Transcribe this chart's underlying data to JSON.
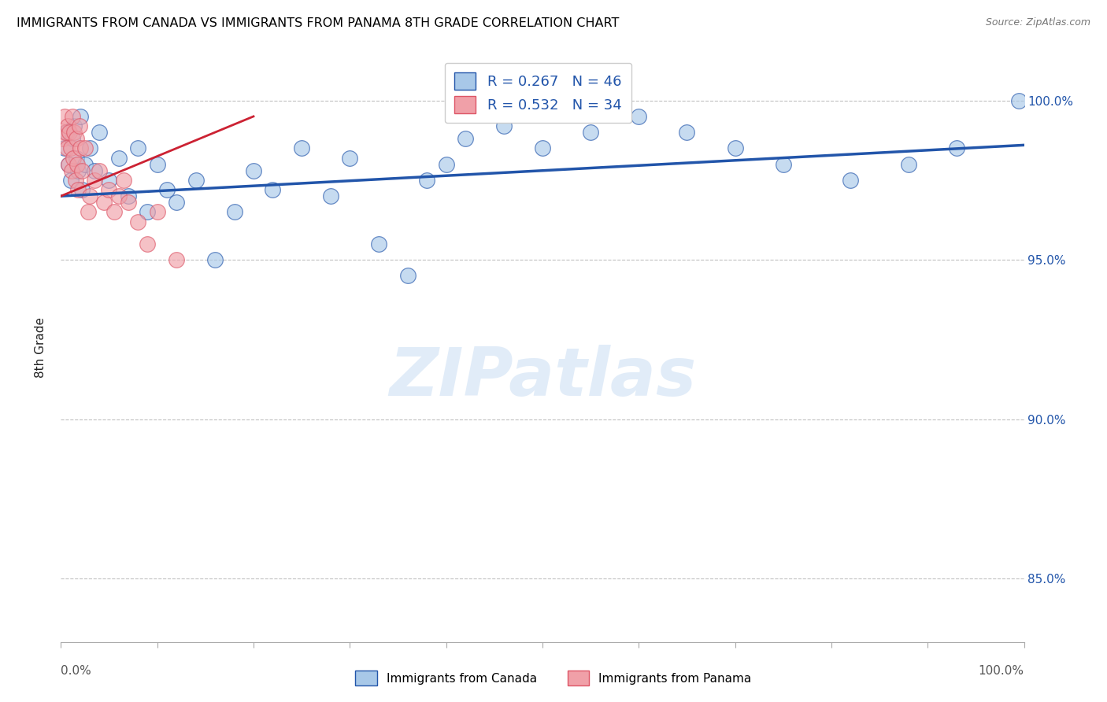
{
  "title": "IMMIGRANTS FROM CANADA VS IMMIGRANTS FROM PANAMA 8TH GRADE CORRELATION CHART",
  "source": "Source: ZipAtlas.com",
  "ylabel": "8th Grade",
  "legend_label1": "Immigrants from Canada",
  "legend_label2": "Immigrants from Panama",
  "r_canada": 0.267,
  "n_canada": 46,
  "r_panama": 0.532,
  "n_panama": 34,
  "blue_color": "#a8c8e8",
  "pink_color": "#f0a0a8",
  "line_blue": "#2255aa",
  "line_pink": "#cc2233",
  "canada_x": [
    0.4,
    0.6,
    0.8,
    1.0,
    1.2,
    1.4,
    1.6,
    1.8,
    2.0,
    2.2,
    2.5,
    3.0,
    3.5,
    4.0,
    5.0,
    6.0,
    7.0,
    8.0,
    9.0,
    10.0,
    11.0,
    12.0,
    14.0,
    16.0,
    18.0,
    20.0,
    22.0,
    25.0,
    28.0,
    30.0,
    33.0,
    36.0,
    38.0,
    40.0,
    42.0,
    46.0,
    50.0,
    55.0,
    60.0,
    65.0,
    70.0,
    75.0,
    82.0,
    88.0,
    93.0,
    99.5
  ],
  "canada_y": [
    98.5,
    99.0,
    98.0,
    97.5,
    98.8,
    99.2,
    98.2,
    97.8,
    99.5,
    97.2,
    98.0,
    98.5,
    97.8,
    99.0,
    97.5,
    98.2,
    97.0,
    98.5,
    96.5,
    98.0,
    97.2,
    96.8,
    97.5,
    95.0,
    96.5,
    97.8,
    97.2,
    98.5,
    97.0,
    98.2,
    95.5,
    94.5,
    97.5,
    98.0,
    98.8,
    99.2,
    98.5,
    99.0,
    99.5,
    99.0,
    98.5,
    98.0,
    97.5,
    98.0,
    98.5,
    100.0
  ],
  "panama_x": [
    0.2,
    0.4,
    0.5,
    0.6,
    0.7,
    0.8,
    0.9,
    1.0,
    1.1,
    1.2,
    1.3,
    1.4,
    1.5,
    1.6,
    1.7,
    1.8,
    1.9,
    2.0,
    2.2,
    2.5,
    2.8,
    3.0,
    3.5,
    4.0,
    4.5,
    5.0,
    5.5,
    6.0,
    6.5,
    7.0,
    8.0,
    9.0,
    10.0,
    12.0
  ],
  "panama_y": [
    98.8,
    99.5,
    99.0,
    98.5,
    99.2,
    98.0,
    99.0,
    98.5,
    97.8,
    99.5,
    98.2,
    99.0,
    97.5,
    98.8,
    98.0,
    97.2,
    99.2,
    98.5,
    97.8,
    98.5,
    96.5,
    97.0,
    97.5,
    97.8,
    96.8,
    97.2,
    96.5,
    97.0,
    97.5,
    96.8,
    96.2,
    95.5,
    96.5,
    95.0
  ],
  "xlim": [
    0,
    100
  ],
  "ylim_bottom": 83.0,
  "ylim_top": 101.5,
  "yticks": [
    85.0,
    90.0,
    95.0,
    100.0
  ],
  "ytick_labels": [
    "85.0%",
    "90.0%",
    "95.0%",
    "100.0%"
  ],
  "grid_color": "#c0c0c0",
  "watermark_text": "ZIPatlas",
  "watermark_color": "#dce9f7"
}
